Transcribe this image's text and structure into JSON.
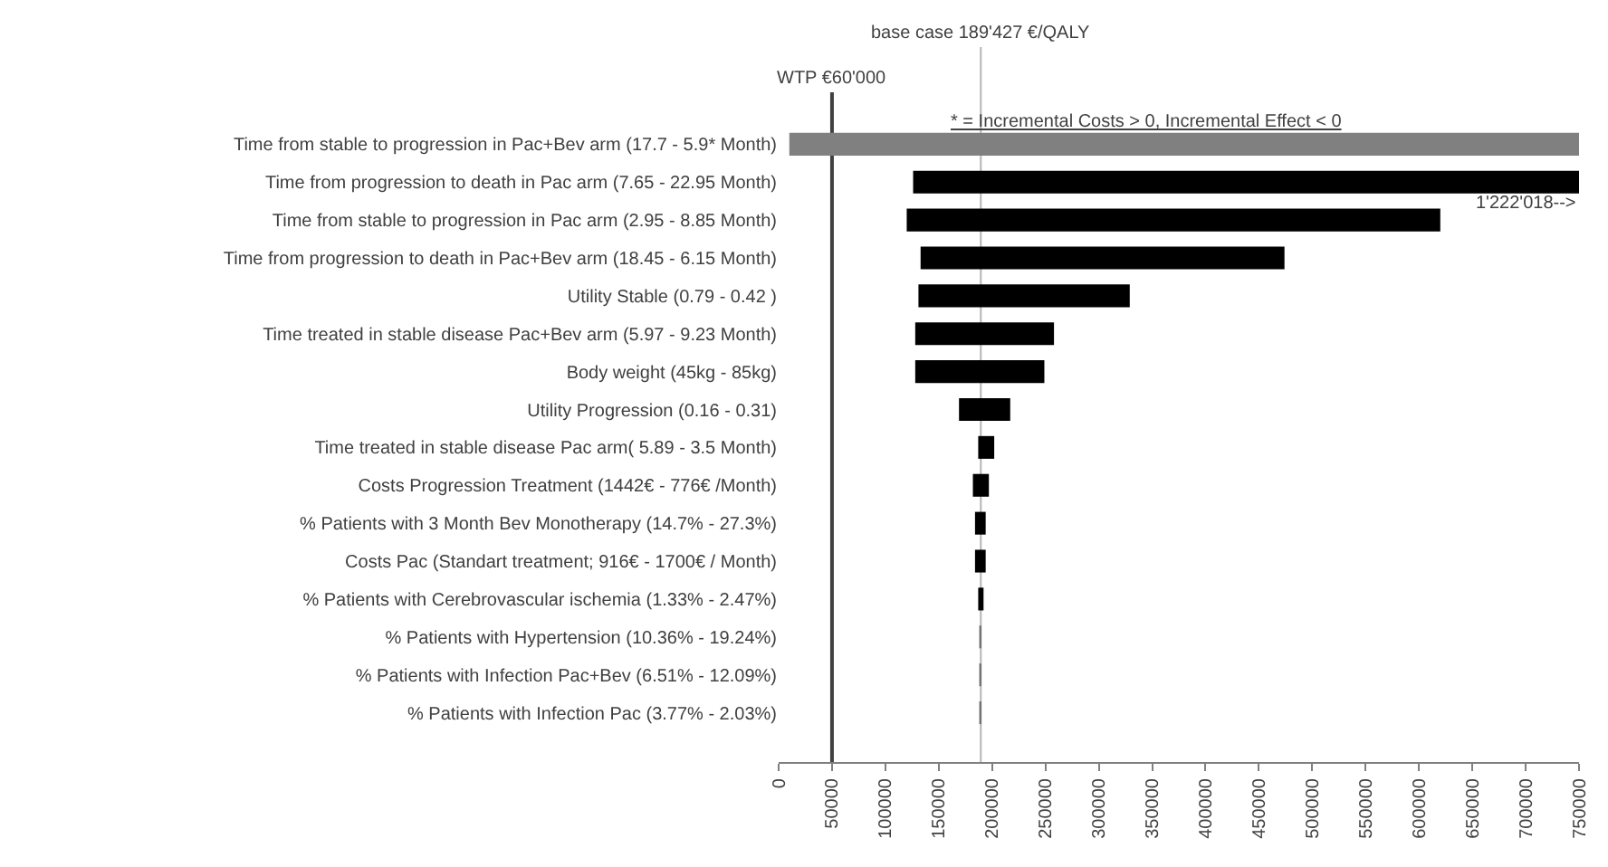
{
  "chart_data": {
    "type": "bar",
    "orientation": "horizontal",
    "categories": [
      "Time from stable to progression in Pac+Bev arm (17.7 - 5.9* Month)",
      "Time from progression to death in Pac arm (7.65 - 22.95 Month)",
      "Time from stable to progression in Pac arm (2.95 - 8.85 Month)",
      "Time from progression to death in Pac+Bev arm (18.45 - 6.15 Month)",
      "Utility Stable (0.79 - 0.42 )",
      "Time treated in stable disease Pac+Bev arm (5.97 - 9.23 Month)",
      "Body weight (45kg - 85kg)",
      "Utility Progression (0.16 - 0.31)",
      "Time treated in stable disease Pac arm( 5.89 - 3.5 Month)",
      "Costs Progression Treatment (1442€ - 776€ /Month)",
      "% Patients with 3 Month Bev Monotherapy (14.7% - 27.3%)",
      "Costs Pac (Standart treatment; 916€ - 1700€ / Month)",
      "% Patients with Cerebrovascular ischemia (1.33% - 2.47%)",
      "% Patients with Hypertension (10.36% - 19.24%)",
      "% Patients with Infection Pac+Bev (6.51% - 12.09%)",
      "% Patients with Infection Pac (3.77% - 2.03%)"
    ],
    "base": [
      10000,
      126000,
      120000,
      133000,
      131000,
      128000,
      128000,
      169000,
      187000,
      182000,
      184000,
      184000,
      187000,
      188000,
      188000,
      188000
    ],
    "values": [
      740000,
      624000,
      500000,
      341000,
      198000,
      130000,
      121000,
      48000,
      15000,
      15000,
      10000,
      10000,
      5000,
      2000,
      2000,
      2000
    ],
    "colors": [
      "#808080",
      "#000000",
      "#000000",
      "#000000",
      "#000000",
      "#000000",
      "#000000",
      "#000000",
      "#000000",
      "#000000",
      "#000000",
      "#000000",
      "#000000",
      "#707070",
      "#707070",
      "#707070"
    ],
    "xlim": [
      0,
      750000
    ],
    "xticks": [
      0,
      50000,
      100000,
      150000,
      200000,
      250000,
      300000,
      350000,
      400000,
      450000,
      500000,
      550000,
      600000,
      650000,
      700000,
      750000
    ],
    "ref_lines": [
      {
        "axis": "x",
        "value": 50000,
        "label": "WTP €60'000",
        "color": "#404040"
      },
      {
        "axis": "x",
        "value": 189427,
        "label": "base case 189'427 €/QALY",
        "color": "#b4b4b4"
      }
    ],
    "annotations": [
      "* = Incremental Costs > 0, Incremental Effect < 0",
      {
        "text": "1'222'018-->",
        "x": 750000,
        "y": "Time from progression to death in Pac arm (7.65 - 22.95 Month)"
      }
    ],
    "grid": false
  }
}
